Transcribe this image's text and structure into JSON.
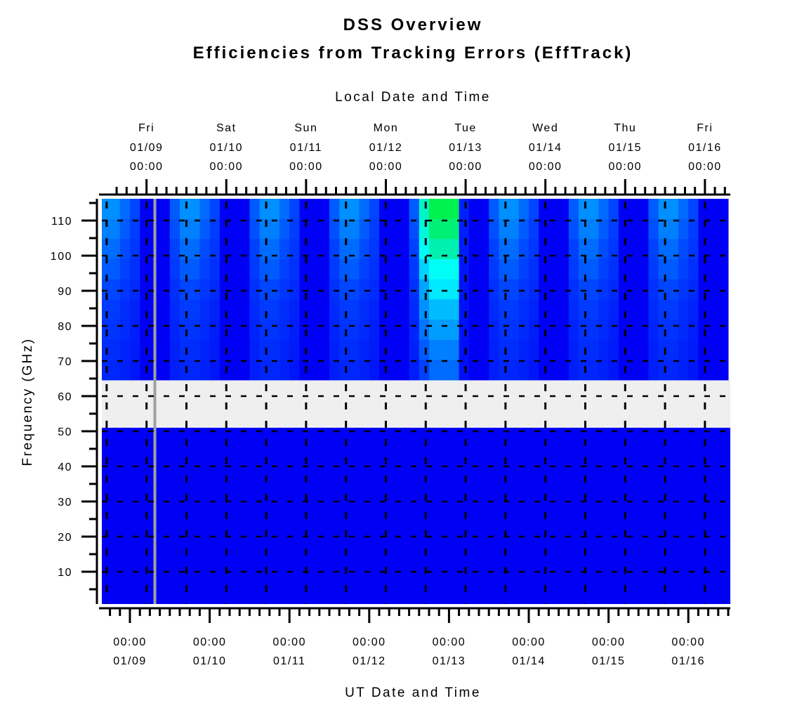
{
  "chart_data": {
    "type": "heatmap",
    "title": "DSS Overview",
    "subtitle": "Efficiencies from Tracking Errors (EffTrack)",
    "top_xlabel": "Local Date and Time",
    "xlabel": "UT Date and Time",
    "ylabel": "Frequency (GHz)",
    "ylim": [
      1,
      116
    ],
    "xlim_ut": [
      "01/08 15:30",
      "01/16 12:45"
    ],
    "local_offset_hours": -5,
    "grid": true,
    "colorscale": [
      "#0000f5",
      "#0040ff",
      "#0090ff",
      "#00ffff",
      "#00f0b0",
      "#00f050"
    ],
    "no_data_color": "#efefef",
    "no_data_frequency_band": [
      51,
      64.6
    ],
    "no_data_time_line_ut": "01/09 07:30",
    "no_data_line_color": "#a0a0a0",
    "column_start_ut": "01/08 15:00",
    "column_step_hours": 3,
    "low_band": {
      "frequency": [
        1,
        51
      ],
      "level": 0
    },
    "frequencies": [
      113,
      107,
      102,
      96,
      90,
      85,
      79,
      73,
      67
    ],
    "levels": [
      [
        0.35,
        0.35,
        0.28,
        0.21,
        0,
        0,
        0,
        0.25,
        0.35,
        0.35,
        0.28,
        0.21,
        0,
        0,
        0,
        0.25,
        0.35,
        0.35,
        0.28,
        0.21,
        0,
        0,
        0,
        0.25,
        0.35,
        0.35,
        0.28,
        0.21,
        0,
        0,
        0,
        0.25,
        0.75,
        1,
        1,
        1,
        0.1,
        0,
        0,
        0.25,
        0.35,
        0.35,
        0.28,
        0.21,
        0,
        0,
        0,
        0.25,
        0.35,
        0.35,
        0.28,
        0.21,
        0,
        0,
        0,
        0.25,
        0.35,
        0.35,
        0.28,
        0.21,
        0,
        0,
        0
      ],
      [
        0.32,
        0.32,
        0.25,
        0.19,
        0,
        0,
        0,
        0.23,
        0.32,
        0.32,
        0.25,
        0.19,
        0,
        0,
        0,
        0.23,
        0.32,
        0.32,
        0.25,
        0.19,
        0,
        0,
        0,
        0.23,
        0.32,
        0.32,
        0.25,
        0.19,
        0,
        0,
        0,
        0.23,
        0.7,
        0.92,
        0.92,
        0.92,
        0.09,
        0,
        0,
        0.23,
        0.32,
        0.32,
        0.25,
        0.19,
        0,
        0,
        0,
        0.23,
        0.32,
        0.32,
        0.25,
        0.19,
        0,
        0,
        0,
        0.23,
        0.32,
        0.32,
        0.25,
        0.19,
        0,
        0,
        0
      ],
      [
        0.28,
        0.28,
        0.22,
        0.17,
        0,
        0,
        0,
        0.2,
        0.28,
        0.28,
        0.22,
        0.17,
        0,
        0,
        0,
        0.2,
        0.28,
        0.28,
        0.22,
        0.17,
        0,
        0,
        0,
        0.2,
        0.28,
        0.28,
        0.22,
        0.17,
        0,
        0,
        0,
        0.2,
        0.62,
        0.8,
        0.8,
        0.8,
        0.08,
        0,
        0,
        0.2,
        0.28,
        0.28,
        0.22,
        0.17,
        0,
        0,
        0,
        0.2,
        0.28,
        0.28,
        0.22,
        0.17,
        0,
        0,
        0,
        0.2,
        0.28,
        0.28,
        0.22,
        0.17,
        0,
        0,
        0
      ],
      [
        0.25,
        0.25,
        0.2,
        0.15,
        0,
        0,
        0,
        0.18,
        0.25,
        0.25,
        0.2,
        0.15,
        0,
        0,
        0,
        0.18,
        0.25,
        0.25,
        0.2,
        0.15,
        0,
        0,
        0,
        0.18,
        0.25,
        0.25,
        0.2,
        0.15,
        0,
        0,
        0,
        0.18,
        0.5,
        0.62,
        0.62,
        0.62,
        0.07,
        0,
        0,
        0.18,
        0.25,
        0.25,
        0.2,
        0.15,
        0,
        0,
        0,
        0.18,
        0.25,
        0.25,
        0.2,
        0.15,
        0,
        0,
        0,
        0.18,
        0.25,
        0.25,
        0.2,
        0.15,
        0,
        0,
        0
      ],
      [
        0.21,
        0.21,
        0.17,
        0.13,
        0,
        0,
        0,
        0.15,
        0.21,
        0.21,
        0.17,
        0.13,
        0,
        0,
        0,
        0.15,
        0.21,
        0.21,
        0.17,
        0.13,
        0,
        0,
        0,
        0.15,
        0.21,
        0.21,
        0.17,
        0.13,
        0,
        0,
        0,
        0.15,
        0.4,
        0.55,
        0.55,
        0.55,
        0.06,
        0,
        0,
        0.15,
        0.21,
        0.21,
        0.17,
        0.13,
        0,
        0,
        0,
        0.15,
        0.21,
        0.21,
        0.17,
        0.13,
        0,
        0,
        0,
        0.15,
        0.21,
        0.21,
        0.17,
        0.13,
        0,
        0,
        0
      ],
      [
        0.18,
        0.18,
        0.14,
        0.11,
        0,
        0,
        0,
        0.13,
        0.18,
        0.18,
        0.14,
        0.11,
        0,
        0,
        0,
        0.13,
        0.18,
        0.18,
        0.14,
        0.11,
        0,
        0,
        0,
        0.13,
        0.18,
        0.18,
        0.14,
        0.11,
        0,
        0,
        0,
        0.13,
        0.35,
        0.45,
        0.45,
        0.45,
        0.05,
        0,
        0,
        0.13,
        0.18,
        0.18,
        0.14,
        0.11,
        0,
        0,
        0,
        0.13,
        0.18,
        0.18,
        0.14,
        0.11,
        0,
        0,
        0,
        0.13,
        0.18,
        0.18,
        0.14,
        0.11,
        0,
        0,
        0
      ],
      [
        0.16,
        0.16,
        0.13,
        0.09,
        0,
        0,
        0,
        0.11,
        0.16,
        0.16,
        0.13,
        0.09,
        0,
        0,
        0,
        0.11,
        0.16,
        0.16,
        0.13,
        0.09,
        0,
        0,
        0,
        0.11,
        0.16,
        0.16,
        0.13,
        0.09,
        0,
        0,
        0,
        0.11,
        0.3,
        0.38,
        0.38,
        0.38,
        0.05,
        0,
        0,
        0.11,
        0.16,
        0.16,
        0.13,
        0.09,
        0,
        0,
        0,
        0.11,
        0.16,
        0.16,
        0.13,
        0.09,
        0,
        0,
        0,
        0.11,
        0.16,
        0.16,
        0.13,
        0.09,
        0,
        0,
        0
      ],
      [
        0.14,
        0.14,
        0.11,
        0.08,
        0,
        0,
        0,
        0.1,
        0.14,
        0.14,
        0.11,
        0.08,
        0,
        0,
        0,
        0.1,
        0.14,
        0.14,
        0.11,
        0.08,
        0,
        0,
        0,
        0.1,
        0.14,
        0.14,
        0.11,
        0.08,
        0,
        0,
        0,
        0.1,
        0.25,
        0.32,
        0.32,
        0.32,
        0.04,
        0,
        0,
        0.1,
        0.14,
        0.14,
        0.11,
        0.08,
        0,
        0,
        0,
        0.1,
        0.14,
        0.14,
        0.11,
        0.08,
        0,
        0,
        0,
        0.1,
        0.14,
        0.14,
        0.11,
        0.08,
        0,
        0,
        0
      ],
      [
        0.12,
        0.12,
        0.1,
        0.07,
        0,
        0,
        0,
        0.09,
        0.12,
        0.12,
        0.1,
        0.07,
        0,
        0,
        0,
        0.09,
        0.12,
        0.12,
        0.1,
        0.07,
        0,
        0,
        0,
        0.09,
        0.12,
        0.12,
        0.1,
        0.07,
        0,
        0,
        0,
        0.09,
        0.2,
        0.28,
        0.28,
        0.28,
        0.04,
        0,
        0,
        0.09,
        0.12,
        0.12,
        0.1,
        0.07,
        0,
        0,
        0,
        0.09,
        0.12,
        0.12,
        0.1,
        0.07,
        0,
        0,
        0,
        0.09,
        0.12,
        0.12,
        0.1,
        0.07,
        0,
        0,
        0
      ]
    ],
    "yticks": [
      10,
      20,
      30,
      40,
      50,
      60,
      70,
      80,
      90,
      100,
      110
    ],
    "top_ticks": [
      {
        "day": "Fri",
        "date": "01/09",
        "time": "00:00"
      },
      {
        "day": "Sat",
        "date": "01/10",
        "time": "00:00"
      },
      {
        "day": "Sun",
        "date": "01/11",
        "time": "00:00"
      },
      {
        "day": "Mon",
        "date": "01/12",
        "time": "00:00"
      },
      {
        "day": "Tue",
        "date": "01/13",
        "time": "00:00"
      },
      {
        "day": "Wed",
        "date": "01/14",
        "time": "00:00"
      },
      {
        "day": "Thu",
        "date": "01/15",
        "time": "00:00"
      },
      {
        "day": "Fri",
        "date": "01/16",
        "time": "00:00"
      }
    ],
    "bottom_ticks": [
      {
        "time": "00:00",
        "date": "01/09"
      },
      {
        "time": "00:00",
        "date": "01/10"
      },
      {
        "time": "00:00",
        "date": "01/11"
      },
      {
        "time": "00:00",
        "date": "01/12"
      },
      {
        "time": "00:00",
        "date": "01/13"
      },
      {
        "time": "00:00",
        "date": "01/14"
      },
      {
        "time": "00:00",
        "date": "01/15"
      },
      {
        "time": "00:00",
        "date": "01/16"
      }
    ]
  }
}
